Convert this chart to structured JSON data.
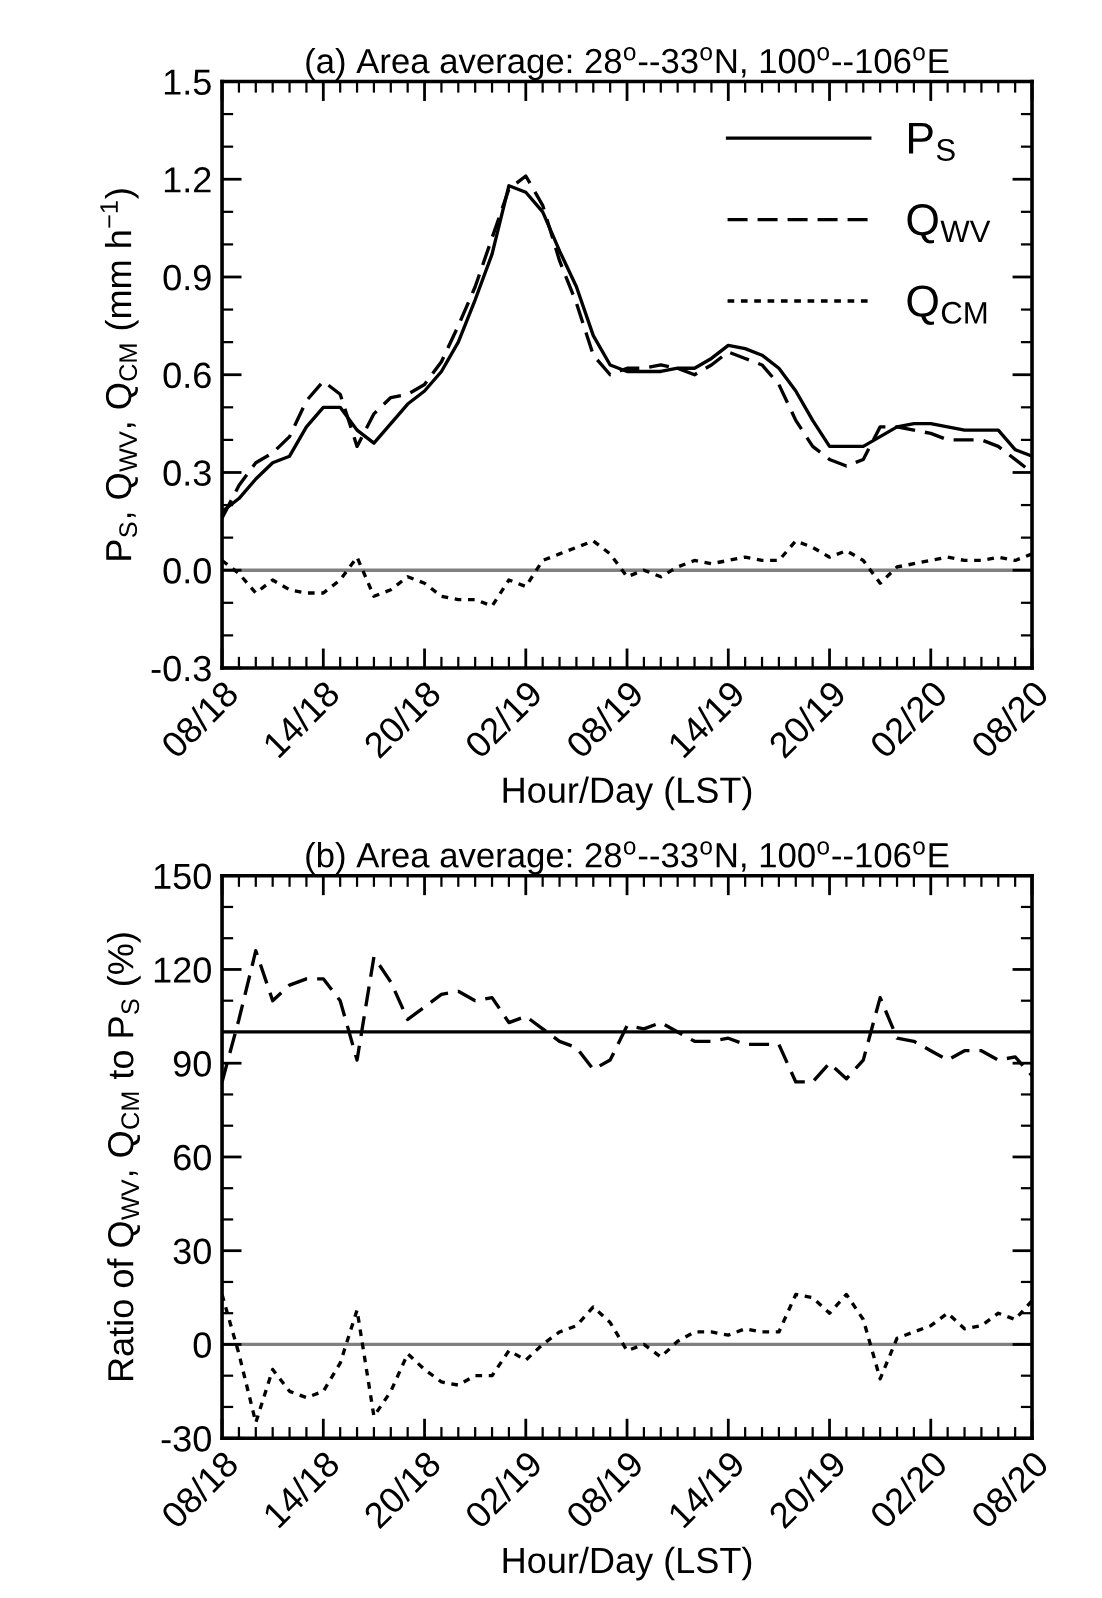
{
  "chart_data": [
    {
      "type": "line",
      "title": "(a) Area average: 28$^{o}$--33$^{o}$N, 100$^{o}$--106$^{o}$E",
      "xlabel": "Hour/Day (LST)",
      "ylabel": "P$_{S}$, Q$_{WV}$, Q$_{CM}$ (mm h$^{−1}$)",
      "categories": [
        "08/18",
        null,
        null,
        null,
        null,
        null,
        "14/18",
        null,
        null,
        null,
        null,
        null,
        "20/18",
        null,
        null,
        null,
        null,
        null,
        "02/19",
        null,
        null,
        null,
        null,
        null,
        "08/19",
        null,
        null,
        null,
        null,
        null,
        "14/19",
        null,
        null,
        null,
        null,
        null,
        "20/19",
        null,
        null,
        null,
        null,
        null,
        "02/20",
        null,
        null,
        null,
        null,
        null,
        "08/20"
      ],
      "series": [
        {
          "name": "P$_{S}$",
          "color": "#000000",
          "line_style": "solid",
          "values": [
            0.18,
            0.22,
            0.28,
            0.33,
            0.35,
            0.44,
            0.5,
            0.5,
            0.43,
            0.39,
            0.45,
            0.51,
            0.55,
            0.61,
            0.7,
            0.83,
            0.97,
            1.18,
            1.16,
            1.1,
            0.98,
            0.87,
            0.72,
            0.63,
            0.61,
            0.61,
            0.61,
            0.62,
            0.62,
            0.65,
            0.69,
            0.68,
            0.66,
            0.62,
            0.55,
            0.46,
            0.38,
            0.38,
            0.38,
            0.41,
            0.44,
            0.45,
            0.45,
            0.44,
            0.43,
            0.43,
            0.43,
            0.37,
            0.35
          ]
        },
        {
          "name": "Q$_{WV}$",
          "color": "#000000",
          "line_style": "dashed",
          "values": [
            0.16,
            0.26,
            0.33,
            0.36,
            0.41,
            0.52,
            0.58,
            0.54,
            0.38,
            0.48,
            0.53,
            0.54,
            0.57,
            0.64,
            0.75,
            0.87,
            1.02,
            1.17,
            1.21,
            1.12,
            0.95,
            0.82,
            0.66,
            0.6,
            0.62,
            0.62,
            0.63,
            0.62,
            0.6,
            0.63,
            0.67,
            0.65,
            0.63,
            0.57,
            0.46,
            0.38,
            0.34,
            0.32,
            0.34,
            0.44,
            0.44,
            0.43,
            0.42,
            0.4,
            0.4,
            0.4,
            0.38,
            0.34,
            0.3
          ]
        },
        {
          "name": "Q$_{CM}$",
          "color": "#000000",
          "line_style": "dotted",
          "values": [
            0.03,
            -0.01,
            -0.07,
            -0.03,
            -0.06,
            -0.07,
            -0.07,
            -0.03,
            0.04,
            -0.08,
            -0.06,
            -0.02,
            -0.04,
            -0.08,
            -0.09,
            -0.09,
            -0.11,
            -0.03,
            -0.05,
            0.03,
            0.05,
            0.07,
            0.09,
            0.05,
            -0.02,
            0.0,
            -0.02,
            0.01,
            0.03,
            0.02,
            0.03,
            0.04,
            0.03,
            0.03,
            0.09,
            0.07,
            0.04,
            0.06,
            0.03,
            -0.04,
            0.01,
            0.02,
            0.03,
            0.04,
            0.03,
            0.03,
            0.04,
            0.03,
            0.05
          ]
        }
      ],
      "ylim": [
        -0.3,
        1.5
      ],
      "yticks": [
        -0.3,
        {
          "value": 0,
          "label": "0.0"
        },
        0.3,
        0.6,
        0.9,
        1.2,
        1.5
      ],
      "ref_lines": [
        {
          "axis": "y",
          "value": 0,
          "color": "#808080"
        }
      ],
      "legend": "top right",
      "marker": "none",
      "grid": false
    },
    {
      "type": "line",
      "title": "(b) Area average: 28$^{o}$--33$^{o}$N, 100$^{o}$--106$^{o}$E",
      "xlabel": "Hour/Day (LST)",
      "ylabel": "Ratio of Q$_{WV}$, Q$_{CM}$ to P$_{S}$ (%)",
      "categories": [
        "08/18",
        null,
        null,
        null,
        null,
        null,
        "14/18",
        null,
        null,
        null,
        null,
        null,
        "20/18",
        null,
        null,
        null,
        null,
        null,
        "02/19",
        null,
        null,
        null,
        null,
        null,
        "08/19",
        null,
        null,
        null,
        null,
        null,
        "14/19",
        null,
        null,
        null,
        null,
        null,
        "20/19",
        null,
        null,
        null,
        null,
        null,
        "02/20",
        null,
        null,
        null,
        null,
        null,
        "08/20"
      ],
      "series": [
        {
          "color": "#000000",
          "line_style": "dashed",
          "values": [
            84,
            104,
            126,
            110,
            115,
            117,
            117,
            110,
            91,
            124,
            116,
            104,
            108,
            112,
            113,
            110,
            111,
            103,
            105,
            101,
            97,
            95,
            88,
            91,
            102,
            101,
            103,
            100,
            97,
            97,
            98,
            96,
            96,
            96,
            84,
            84,
            90,
            85,
            91,
            111,
            98,
            97,
            94,
            91,
            94,
            94,
            91,
            92,
            86
          ]
        },
        {
          "color": "#000000",
          "line_style": "dotted",
          "values": [
            16,
            -3,
            -25,
            -8,
            -15,
            -17,
            -15,
            -6,
            11,
            -23,
            -15,
            -3,
            -8,
            -12,
            -13,
            -10,
            -10,
            -2,
            -5,
            0,
            4,
            6,
            12,
            7,
            -2,
            0,
            -4,
            1,
            4,
            4,
            3,
            5,
            4,
            4,
            16,
            15,
            10,
            16,
            8,
            -11,
            2,
            4,
            6,
            10,
            5,
            6,
            10,
            8,
            14
          ]
        }
      ],
      "ylim": [
        -30,
        150
      ],
      "yticks": [
        -30,
        0,
        30,
        60,
        90,
        120,
        150
      ],
      "ref_lines": [
        {
          "axis": "y",
          "value": 100,
          "color": "#000000"
        },
        {
          "axis": "y",
          "value": 0,
          "color": "#808080"
        }
      ],
      "legend": false,
      "marker": "none",
      "grid": false
    }
  ]
}
